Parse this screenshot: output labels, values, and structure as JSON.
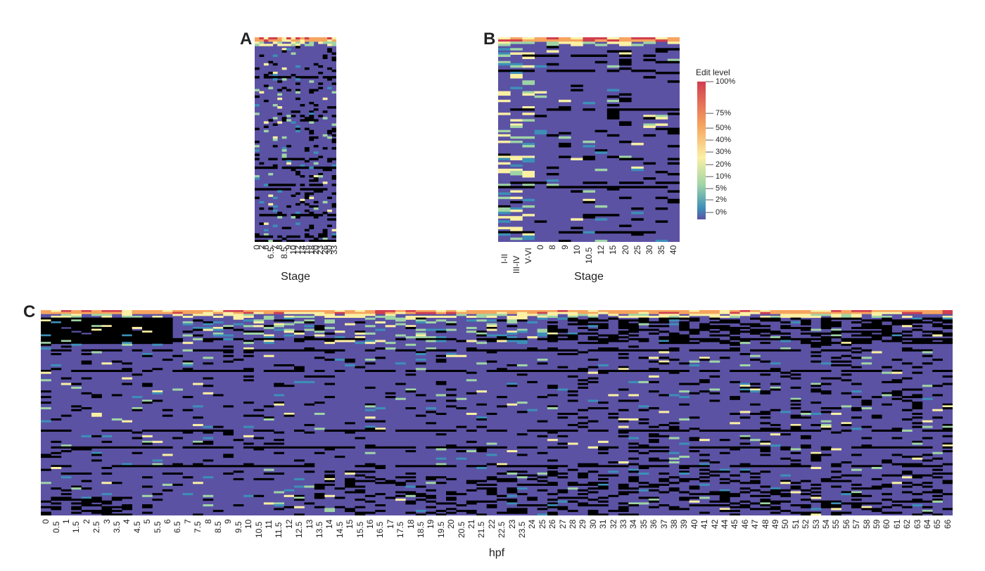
{
  "chart_data": [
    {
      "panel": "A",
      "type": "heatmap",
      "xlabel": "Stage",
      "categories": [
        "0",
        "2",
        "6",
        "6.5",
        "7",
        "8",
        "8.5",
        "9",
        "10",
        "12",
        "14",
        "16",
        "18",
        "20",
        "23",
        "26",
        "30",
        "33"
      ]
    },
    {
      "panel": "B",
      "type": "heatmap",
      "xlabel": "Stage",
      "categories": [
        "I-II",
        "III-IV",
        "V-VI",
        "0",
        "8",
        "9",
        "10",
        "10.5",
        "12",
        "15",
        "20",
        "25",
        "30",
        "35",
        "40"
      ]
    },
    {
      "panel": "C",
      "type": "heatmap",
      "xlabel": "hpf",
      "categories": [
        "0",
        "0.5",
        "1",
        "1.5",
        "2",
        "2.5",
        "3",
        "3.5",
        "4",
        "4.5",
        "5",
        "5.5",
        "6",
        "6.5",
        "7",
        "7.5",
        "8",
        "8.5",
        "9",
        "9.5",
        "10",
        "10.5",
        "11",
        "11.5",
        "12",
        "12.5",
        "13",
        "13.5",
        "14",
        "14.5",
        "15",
        "15.5",
        "16",
        "16.5",
        "17",
        "17.5",
        "18",
        "18.5",
        "19",
        "19.5",
        "20",
        "20.5",
        "21",
        "21.5",
        "22",
        "22.5",
        "23",
        "23.5",
        "24",
        "25",
        "26",
        "27",
        "28",
        "29",
        "30",
        "31",
        "32",
        "33",
        "34",
        "35",
        "36",
        "37",
        "38",
        "39",
        "40",
        "41",
        "42",
        "44",
        "45",
        "46",
        "47",
        "48",
        "49",
        "50",
        "51",
        "52",
        "53",
        "54",
        "55",
        "56",
        "57",
        "58",
        "59",
        "60",
        "61",
        "62",
        "63",
        "64",
        "65",
        "66"
      ]
    }
  ],
  "legend": {
    "title": "Edit level",
    "labels": [
      "100%",
      "75%",
      "50%",
      "40%",
      "30%",
      "20%",
      "10%",
      "5%",
      "2%",
      "0%"
    ],
    "colors": {
      "low": "#5b52a4",
      "mid_low": "#3d8fb8",
      "mid": "#9fd4a6",
      "mid_high": "#fbf0a4",
      "high": "#f6a45f",
      "max": "#d13e50",
      "missing": "#000000"
    }
  }
}
